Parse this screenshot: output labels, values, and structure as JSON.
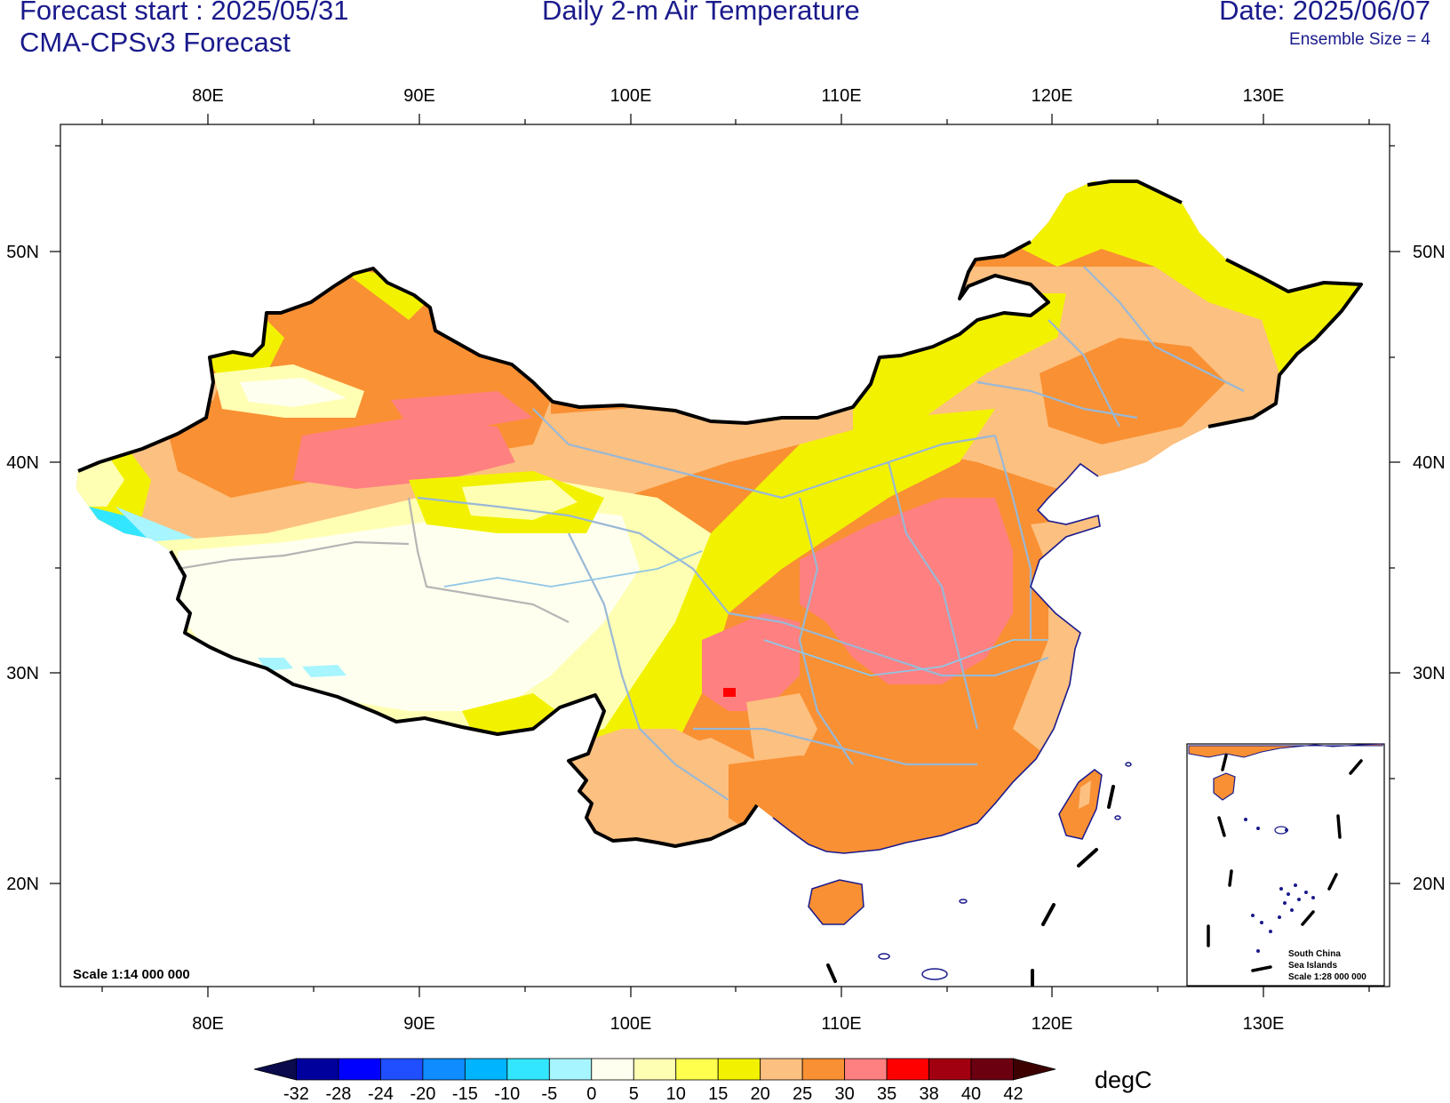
{
  "header": {
    "forecast_start": "Forecast start : 2025/05/31",
    "model": "CMA-CPSv3 Forecast",
    "title": "Daily 2-m Air Temperature",
    "date": "Date: 2025/06/07",
    "ensemble": "Ensemble Size = 4"
  },
  "map": {
    "lon_ticks": [
      "80E",
      "90E",
      "100E",
      "110E",
      "120E",
      "130E"
    ],
    "lat_ticks": [
      "50N",
      "40N",
      "30N",
      "20N"
    ],
    "scale_main": "Scale 1:14 000 000",
    "inset_label": [
      "South China",
      "Sea Islands",
      "Scale 1:28 000 000"
    ]
  },
  "colorbar": {
    "unit": "degC",
    "ticks": [
      "-32",
      "-28",
      "-24",
      "-20",
      "-15",
      "-10",
      "-5",
      "0",
      "5",
      "10",
      "15",
      "20",
      "25",
      "30",
      "35",
      "38",
      "40",
      "42"
    ],
    "colors": [
      "#0a0a4d",
      "#00009c",
      "#0000ff",
      "#1f4fff",
      "#0f8cff",
      "#00b4ff",
      "#33e6ff",
      "#a6f5ff",
      "#fffff0",
      "#ffffb3",
      "#ffff4d",
      "#f2f200",
      "#fcc080",
      "#f99033",
      "#ff8080",
      "#ff0000",
      "#a00010",
      "#6a0010",
      "#3d0000"
    ]
  },
  "colors": {
    "title_text": "#1a1a8c",
    "border": "#000000",
    "province_lines": "#99b8d6",
    "rivers": "#99c7e6"
  }
}
